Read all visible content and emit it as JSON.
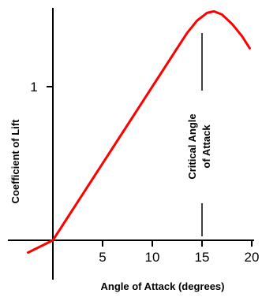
{
  "chart_data": {
    "type": "line",
    "title": "",
    "xlabel": "Angle of Attack (degrees)",
    "ylabel": "Coefficient of Lift",
    "xlim": [
      -4,
      20
    ],
    "ylim": [
      -0.08,
      1.55
    ],
    "x_ticks": [
      5,
      10,
      15,
      20
    ],
    "y_ticks": [
      1
    ],
    "x_tick_labels": [
      "5",
      "10",
      "15",
      "20"
    ],
    "y_tick_labels": [
      "1"
    ],
    "grid": false,
    "series": [
      {
        "color": "#ff0000",
        "points": [
          [
            -2.5,
            -0.08
          ],
          [
            0,
            0.0
          ],
          [
            2,
            0.2
          ],
          [
            4,
            0.4
          ],
          [
            6,
            0.6
          ],
          [
            8,
            0.8
          ],
          [
            10,
            1.0
          ],
          [
            12,
            1.2
          ],
          [
            13.5,
            1.35
          ],
          [
            14.5,
            1.43
          ],
          [
            15.5,
            1.48
          ],
          [
            16.2,
            1.49
          ],
          [
            17,
            1.47
          ],
          [
            18,
            1.41
          ],
          [
            19,
            1.33
          ],
          [
            19.8,
            1.25
          ]
        ]
      }
    ],
    "annotations": [
      {
        "text_lines": [
          "Critical Angle",
          "of Attack"
        ],
        "x": 15
      }
    ]
  }
}
